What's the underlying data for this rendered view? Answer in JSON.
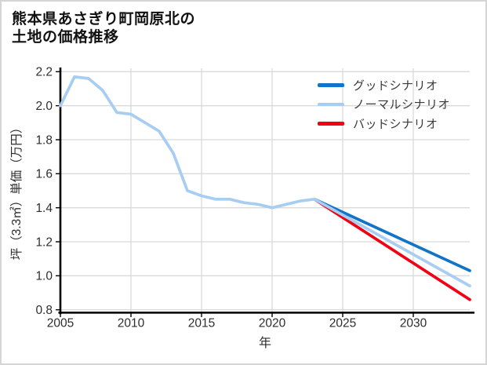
{
  "header": {
    "title_line1": "熊本県あさぎり町岡原北の",
    "title_line2": "土地の価格推移"
  },
  "chart_data": {
    "type": "line",
    "title": "熊本県あさぎり町岡原北の土地の価格推移",
    "xlabel": "年",
    "ylabel": "坪（3.3㎡）単価（万円）",
    "xlim": [
      2005,
      2034
    ],
    "ylim": [
      0.78,
      2.22
    ],
    "xticks": [
      2005,
      2010,
      2015,
      2020,
      2025,
      2030
    ],
    "xtick_labels": [
      "2005",
      "2010",
      "2015",
      "2020",
      "2025",
      "2030"
    ],
    "yticks": [
      0.8,
      1.0,
      1.2,
      1.4,
      1.6,
      1.8,
      2.0,
      2.2
    ],
    "ytick_labels": [
      "0.8",
      "1.0",
      "1.2",
      "1.4",
      "1.6",
      "1.8",
      "2.0",
      "2.2"
    ],
    "grid": true,
    "legend_position": "upper-right",
    "colors": {
      "axis": "#000000",
      "grid": "#dadada",
      "tick_text": "#2d2d2d",
      "legend_text": "#3a3a3a",
      "background": "#ffffff"
    },
    "series": [
      {
        "id": "historical",
        "legend": null,
        "color": "#a8cdf2",
        "x": [
          2005,
          2006,
          2007,
          2008,
          2009,
          2010,
          2011,
          2012,
          2013,
          2014,
          2015,
          2016,
          2017,
          2018,
          2019,
          2020,
          2021,
          2022,
          2023
        ],
        "y": [
          2.0,
          2.17,
          2.16,
          2.09,
          1.96,
          1.95,
          1.9,
          1.85,
          1.72,
          1.5,
          1.47,
          1.45,
          1.45,
          1.43,
          1.42,
          1.4,
          1.42,
          1.44,
          1.45
        ]
      },
      {
        "id": "good-scenario",
        "legend": "グッドシナリオ",
        "color": "#1274c8",
        "x": [
          2023,
          2034
        ],
        "y": [
          1.45,
          1.03
        ]
      },
      {
        "id": "normal-scenario",
        "legend": "ノーマルシナリオ",
        "color": "#a8cdf2",
        "x": [
          2023,
          2034
        ],
        "y": [
          1.45,
          0.94
        ]
      },
      {
        "id": "bad-scenario",
        "legend": "バッドシナリオ",
        "color": "#f20013",
        "x": [
          2023,
          2034
        ],
        "y": [
          1.45,
          0.86
        ]
      }
    ]
  }
}
